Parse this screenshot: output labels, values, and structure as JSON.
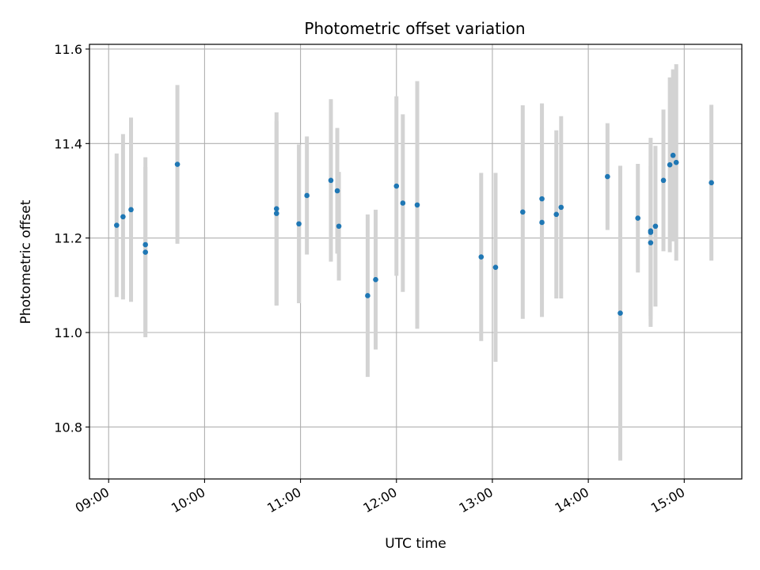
{
  "chart_data": {
    "type": "scatter",
    "title": "Photometric offset variation",
    "xlabel": "UTC time",
    "ylabel": "Photometric offset",
    "x_tick_labels": [
      "09:00",
      "10:00",
      "11:00",
      "12:00",
      "13:00",
      "14:00",
      "15:00"
    ],
    "y_tick_labels": [
      "10.8",
      "11.0",
      "11.2",
      "11.4",
      "11.6"
    ],
    "xlim": [
      "08:48",
      "15:36"
    ],
    "ylim": [
      10.69,
      11.61
    ],
    "grid": true,
    "marker_color": "#1f77b4",
    "errorbar_color": "#d3d3d3",
    "points": [
      {
        "x": "09:05",
        "y": 11.227,
        "err": 0.152
      },
      {
        "x": "09:09",
        "y": 11.245,
        "err": 0.175
      },
      {
        "x": "09:14",
        "y": 11.26,
        "err": 0.195
      },
      {
        "x": "09:23",
        "y": 11.186,
        "err": 0.185
      },
      {
        "x": "09:23",
        "y": 11.17,
        "err": 0.18
      },
      {
        "x": "09:43",
        "y": 11.356,
        "err": 0.168
      },
      {
        "x": "10:45",
        "y": 11.262,
        "err": 0.204
      },
      {
        "x": "10:45",
        "y": 11.252,
        "err": 0.195
      },
      {
        "x": "10:59",
        "y": 11.23,
        "err": 0.168
      },
      {
        "x": "11:04",
        "y": 11.29,
        "err": 0.125
      },
      {
        "x": "11:19",
        "y": 11.322,
        "err": 0.172
      },
      {
        "x": "11:23",
        "y": 11.3,
        "err": 0.133
      },
      {
        "x": "11:24",
        "y": 11.225,
        "err": 0.115
      },
      {
        "x": "11:42",
        "y": 11.078,
        "err": 0.172
      },
      {
        "x": "11:47",
        "y": 11.112,
        "err": 0.148
      },
      {
        "x": "12:00",
        "y": 11.31,
        "err": 0.19
      },
      {
        "x": "12:04",
        "y": 11.274,
        "err": 0.188
      },
      {
        "x": "12:13",
        "y": 11.27,
        "err": 0.262
      },
      {
        "x": "12:53",
        "y": 11.16,
        "err": 0.178
      },
      {
        "x": "13:02",
        "y": 11.138,
        "err": 0.2
      },
      {
        "x": "13:19",
        "y": 11.255,
        "err": 0.226
      },
      {
        "x": "13:31",
        "y": 11.283,
        "err": 0.202
      },
      {
        "x": "13:31",
        "y": 11.233,
        "err": 0.2
      },
      {
        "x": "13:40",
        "y": 11.25,
        "err": 0.178
      },
      {
        "x": "13:43",
        "y": 11.265,
        "err": 0.193
      },
      {
        "x": "14:12",
        "y": 11.33,
        "err": 0.113
      },
      {
        "x": "14:20",
        "y": 11.041,
        "err": 0.312
      },
      {
        "x": "14:31",
        "y": 11.242,
        "err": 0.115
      },
      {
        "x": "14:39",
        "y": 11.215,
        "err": 0.18
      },
      {
        "x": "14:39",
        "y": 11.212,
        "err": 0.2
      },
      {
        "x": "14:39",
        "y": 11.19,
        "err": 0.162
      },
      {
        "x": "14:42",
        "y": 11.225,
        "err": 0.17
      },
      {
        "x": "14:47",
        "y": 11.322,
        "err": 0.15
      },
      {
        "x": "14:51",
        "y": 11.355,
        "err": 0.185
      },
      {
        "x": "14:53",
        "y": 11.375,
        "err": 0.182
      },
      {
        "x": "14:55",
        "y": 11.36,
        "err": 0.208
      },
      {
        "x": "15:17",
        "y": 11.317,
        "err": 0.165
      }
    ]
  }
}
